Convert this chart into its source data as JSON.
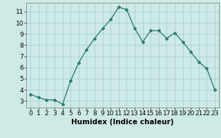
{
  "x": [
    0,
    1,
    2,
    3,
    4,
    5,
    6,
    7,
    8,
    9,
    10,
    11,
    12,
    13,
    14,
    15,
    16,
    17,
    18,
    19,
    20,
    21,
    22,
    23
  ],
  "y": [
    3.6,
    3.3,
    3.1,
    3.1,
    2.7,
    4.8,
    6.4,
    7.6,
    8.6,
    9.5,
    10.3,
    11.4,
    11.2,
    9.5,
    8.3,
    9.3,
    9.3,
    8.6,
    9.1,
    8.3,
    7.4,
    6.5,
    5.9,
    4.0
  ],
  "line_color": "#2e7d6e",
  "marker": "D",
  "marker_size": 2,
  "bg_color": "#ceeae6",
  "grid_color": "#aed4cf",
  "xlabel": "Humidex (Indice chaleur)",
  "ylim": [
    2.4,
    11.8
  ],
  "xlim": [
    -0.5,
    23.5
  ],
  "yticks": [
    3,
    4,
    5,
    6,
    7,
    8,
    9,
    10,
    11
  ],
  "xticks": [
    0,
    1,
    2,
    3,
    4,
    5,
    6,
    7,
    8,
    9,
    10,
    11,
    12,
    13,
    14,
    15,
    16,
    17,
    18,
    19,
    20,
    21,
    22,
    23
  ],
  "xlabel_fontsize": 7.5,
  "tick_fontsize": 6.5,
  "line_width": 1.0
}
